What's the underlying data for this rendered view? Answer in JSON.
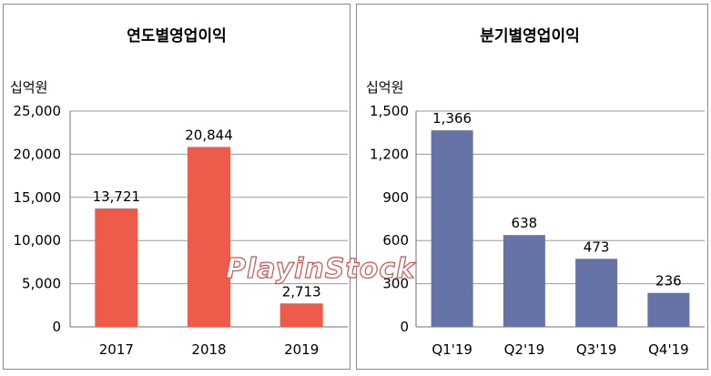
{
  "watermark": "PlayinStock",
  "chart_data": [
    {
      "type": "bar",
      "title": "연도별영업이익",
      "unit_label": "십억원",
      "categories": [
        "2017",
        "2018",
        "2019"
      ],
      "values": [
        13721,
        20844,
        2713
      ],
      "data_labels": [
        "13,721",
        "20,844",
        "2,713"
      ],
      "yticks": [
        "0",
        "5,000",
        "10,000",
        "15,000",
        "20,000",
        "25,000"
      ],
      "ylim": [
        0,
        25000
      ],
      "grid": true,
      "color": "#ef5b4b"
    },
    {
      "type": "bar",
      "title": "분기별영업이익",
      "unit_label": "십억원",
      "categories": [
        "Q1'19",
        "Q2'19",
        "Q3'19",
        "Q4'19"
      ],
      "values": [
        1366,
        638,
        473,
        236
      ],
      "data_labels": [
        "1,366",
        "638",
        "473",
        "236"
      ],
      "yticks": [
        "0",
        "300",
        "600",
        "900",
        "1,200",
        "1,500"
      ],
      "ylim": [
        0,
        1500
      ],
      "grid": true,
      "color": "#6673a6"
    }
  ]
}
